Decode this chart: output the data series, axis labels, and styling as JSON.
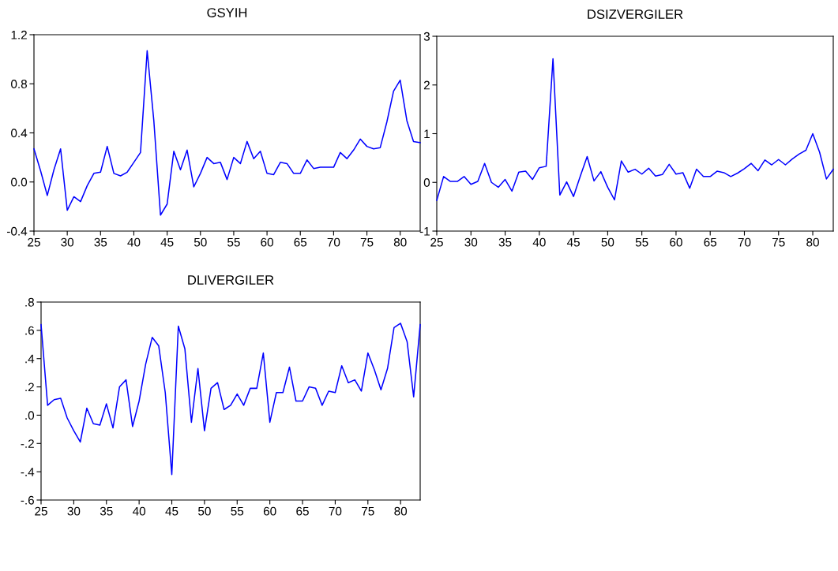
{
  "chart_data": [
    {
      "type": "line",
      "title": "GSYIH",
      "x": [
        25,
        26,
        27,
        28,
        29,
        30,
        31,
        32,
        33,
        34,
        35,
        36,
        37,
        38,
        39,
        40,
        41,
        42,
        43,
        44,
        45,
        46,
        47,
        48,
        49,
        50,
        51,
        52,
        53,
        54,
        55,
        56,
        57,
        58,
        59,
        60,
        61,
        62,
        63,
        64,
        65,
        66,
        67,
        68,
        69,
        70,
        71,
        72,
        73,
        74,
        75,
        76,
        77,
        78,
        79,
        80,
        81,
        82,
        83
      ],
      "series": [
        {
          "color": "#0000ff",
          "values": [
            0.27,
            0.09,
            -0.11,
            0.1,
            0.27,
            -0.23,
            -0.12,
            -0.16,
            -0.03,
            0.07,
            0.08,
            0.29,
            0.07,
            0.05,
            0.08,
            0.16,
            0.24,
            1.07,
            0.5,
            -0.27,
            -0.18,
            0.25,
            0.1,
            0.26,
            -0.04,
            0.07,
            0.2,
            0.15,
            0.16,
            0.02,
            0.2,
            0.15,
            0.33,
            0.19,
            0.25,
            0.07,
            0.06,
            0.16,
            0.15,
            0.07,
            0.07,
            0.18,
            0.11,
            0.12,
            0.12,
            0.12,
            0.24,
            0.19,
            0.26,
            0.35,
            0.29,
            0.27,
            0.28,
            0.49,
            0.74,
            0.83,
            0.5,
            0.33,
            0.32
          ]
        }
      ],
      "xlim": [
        25,
        83
      ],
      "xticks": [
        25,
        30,
        35,
        40,
        45,
        50,
        55,
        60,
        65,
        70,
        75,
        80
      ],
      "ylim": [
        -0.4,
        1.2
      ],
      "yticks": [
        {
          "value": -0.4,
          "label": "-0.4"
        },
        {
          "value": 0,
          "label": "0.0"
        },
        {
          "value": 0.4,
          "label": "0.4"
        },
        {
          "value": 0.8,
          "label": "0.8"
        },
        {
          "value": 1.2,
          "label": "1.2"
        }
      ],
      "grid": false,
      "legend": false,
      "marker": "none",
      "line_style": "solid"
    },
    {
      "type": "line",
      "title": "DSIZVERGILER",
      "x": [
        25,
        26,
        27,
        28,
        29,
        30,
        31,
        32,
        33,
        34,
        35,
        36,
        37,
        38,
        39,
        40,
        41,
        42,
        43,
        44,
        45,
        46,
        47,
        48,
        49,
        50,
        51,
        52,
        53,
        54,
        55,
        56,
        57,
        58,
        59,
        60,
        61,
        62,
        63,
        64,
        65,
        66,
        67,
        68,
        69,
        70,
        71,
        72,
        73,
        74,
        75,
        76,
        77,
        78,
        79,
        80,
        81,
        82,
        83
      ],
      "series": [
        {
          "color": "#0000ff",
          "values": [
            -0.37,
            0.12,
            0.02,
            0.02,
            0.12,
            -0.04,
            0.02,
            0.39,
            0.0,
            -0.1,
            0.06,
            -0.18,
            0.21,
            0.23,
            0.06,
            0.3,
            0.33,
            2.54,
            -0.26,
            0.01,
            -0.29,
            0.13,
            0.53,
            0.03,
            0.22,
            -0.1,
            -0.36,
            0.44,
            0.21,
            0.27,
            0.17,
            0.29,
            0.13,
            0.16,
            0.37,
            0.17,
            0.2,
            -0.12,
            0.27,
            0.12,
            0.12,
            0.23,
            0.2,
            0.12,
            0.19,
            0.28,
            0.39,
            0.24,
            0.46,
            0.36,
            0.47,
            0.36,
            0.48,
            0.58,
            0.66,
            1.0,
            0.62,
            0.07,
            0.27
          ]
        }
      ],
      "xlim": [
        25,
        83
      ],
      "xticks": [
        25,
        30,
        35,
        40,
        45,
        50,
        55,
        60,
        65,
        70,
        75,
        80
      ],
      "ylim": [
        -1,
        3
      ],
      "yticks": [
        -1,
        0,
        1,
        2,
        3
      ],
      "grid": false,
      "legend": false,
      "marker": "none",
      "line_style": "solid"
    },
    {
      "type": "line",
      "title": "DLIVERGILER",
      "x": [
        25,
        26,
        27,
        28,
        29,
        30,
        31,
        32,
        33,
        34,
        35,
        36,
        37,
        38,
        39,
        40,
        41,
        42,
        43,
        44,
        45,
        46,
        47,
        48,
        49,
        50,
        51,
        52,
        53,
        54,
        55,
        56,
        57,
        58,
        59,
        60,
        61,
        62,
        63,
        64,
        65,
        66,
        67,
        68,
        69,
        70,
        71,
        72,
        73,
        74,
        75,
        76,
        77,
        78,
        79,
        80,
        81,
        82,
        83
      ],
      "series": [
        {
          "color": "#0000ff",
          "values": [
            0.64,
            0.07,
            0.11,
            0.12,
            -0.02,
            -0.11,
            -0.19,
            0.05,
            -0.06,
            -0.07,
            0.08,
            -0.09,
            0.2,
            0.25,
            -0.08,
            0.1,
            0.36,
            0.55,
            0.49,
            0.16,
            -0.42,
            0.63,
            0.47,
            -0.05,
            0.33,
            -0.11,
            0.19,
            0.23,
            0.04,
            0.07,
            0.15,
            0.07,
            0.19,
            0.19,
            0.44,
            -0.05,
            0.16,
            0.16,
            0.34,
            0.1,
            0.1,
            0.2,
            0.19,
            0.07,
            0.17,
            0.16,
            0.35,
            0.23,
            0.25,
            0.17,
            0.44,
            0.32,
            0.18,
            0.33,
            0.62,
            0.65,
            0.52,
            0.13,
            0.64
          ]
        }
      ],
      "xlim": [
        25,
        83
      ],
      "xticks": [
        25,
        30,
        35,
        40,
        45,
        50,
        55,
        60,
        65,
        70,
        75,
        80
      ],
      "ylim": [
        -0.6,
        0.8
      ],
      "yticks": [
        {
          "value": -0.6,
          "label": "-.6"
        },
        {
          "value": -0.4,
          "label": "-.4"
        },
        {
          "value": -0.2,
          "label": "-.2"
        },
        {
          "value": 0,
          "label": ".0"
        },
        {
          "value": 0.2,
          "label": ".2"
        },
        {
          "value": 0.4,
          "label": ".4"
        },
        {
          "value": 0.6,
          "label": ".6"
        },
        {
          "value": 0.8,
          "label": ".8"
        }
      ],
      "grid": false,
      "legend": false,
      "marker": "none",
      "line_style": "solid"
    }
  ]
}
